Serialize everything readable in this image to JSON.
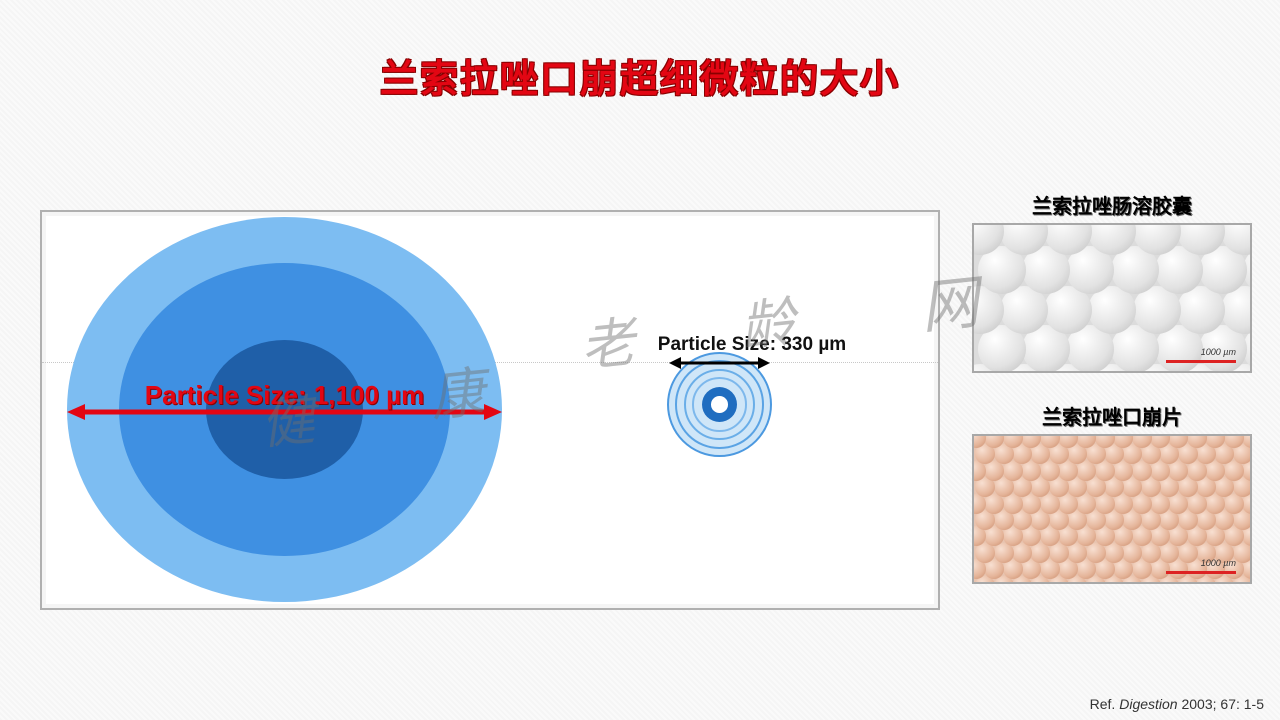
{
  "title": "兰索拉唑口崩超细微粒的大小",
  "panel": {
    "large_particle": {
      "label": "Particle Size: 1,100 µm",
      "size_um": 1100,
      "colors": {
        "outer": "#7dbdf2",
        "mid": "#3f90e2",
        "inner": "#1f5fa8"
      },
      "arrow_color": "#e30613",
      "label_color": "#e30613",
      "label_fontsize": 26
    },
    "small_particle": {
      "label": "Particle Size: 330 µm",
      "size_um": 330,
      "ring_color": "#4c99e0",
      "core_color": "#1f6dc0",
      "arrow_color": "#000000",
      "label_color": "#000000",
      "label_fontsize": 19
    },
    "background": "#ffffff",
    "border_color": "#b0b0b0",
    "divider_color": "#c8c8c8"
  },
  "sidebar": {
    "items": [
      {
        "title": "兰索拉唑肠溶胶囊",
        "thumb": "white-spheres",
        "scale_label": "1000 µm"
      },
      {
        "title": "兰索拉唑口崩片",
        "thumb": "pink-spheres",
        "scale_label": "1000 µm"
      }
    ]
  },
  "reference": {
    "prefix": "Ref. ",
    "journal": "Digestion",
    "rest": " 2003; 67: 1-5"
  },
  "watermark": {
    "chars": [
      "健",
      "康",
      "老",
      "龄",
      "网"
    ]
  },
  "colors": {
    "title": "#e30613",
    "page_bg": "#f5f5f5"
  }
}
